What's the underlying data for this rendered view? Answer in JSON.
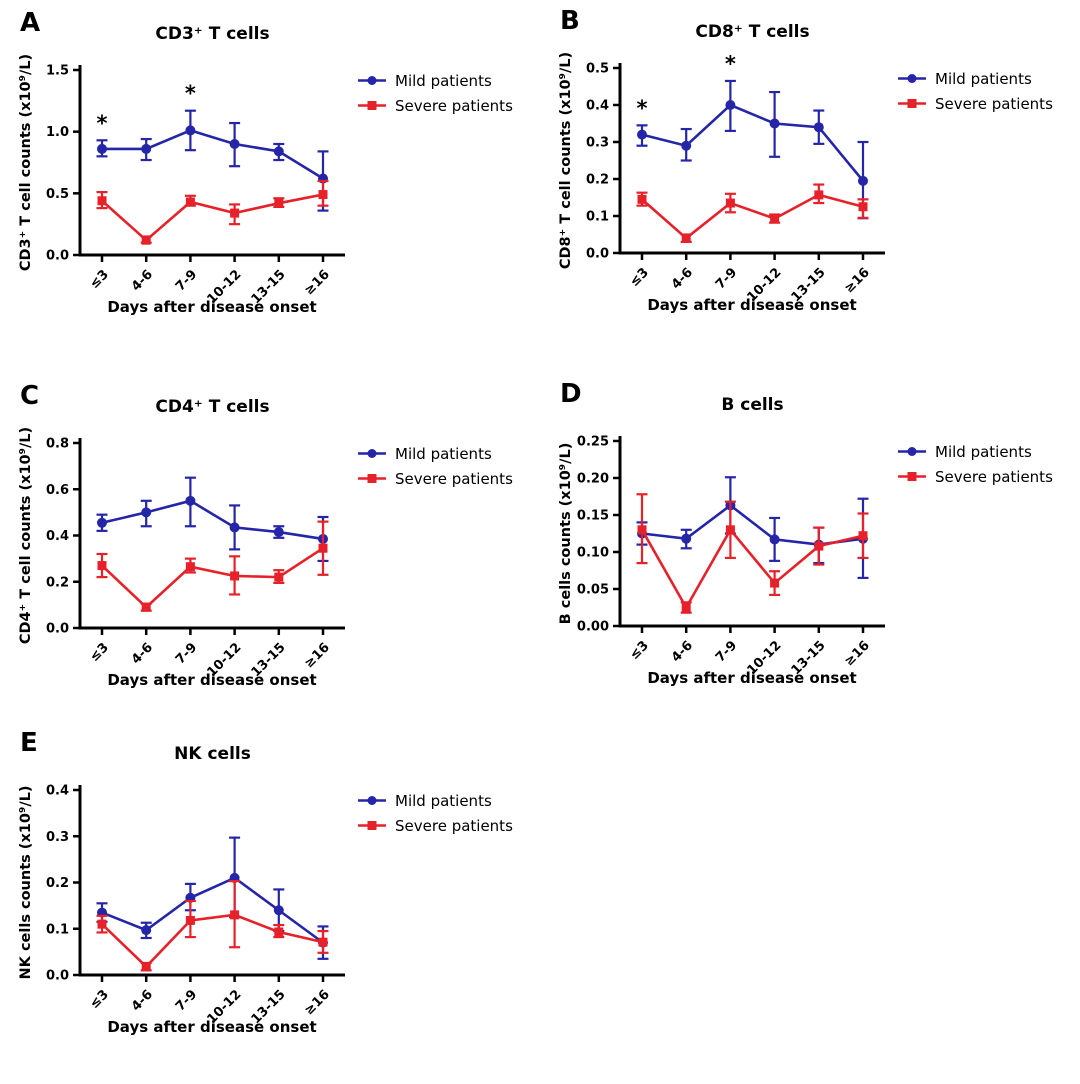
{
  "figure": {
    "background": "#ffffff",
    "axis_color": "#000000",
    "legend": [
      "Mild patients",
      "Severe patients"
    ]
  },
  "chart_data": [
    {
      "panel": "A",
      "type": "line",
      "title": "CD3⁺ T cells",
      "xlabel": "Days after disease onset",
      "ylabel": "CD3⁺ T cell counts (x10⁹/L)",
      "categories": [
        "≤3",
        "4-6",
        "7-9",
        "10-12",
        "13-15",
        "≥16"
      ],
      "ylim": [
        0,
        1.5
      ],
      "ytick_step": 0.5,
      "ytick_decimals": 1,
      "grid": false,
      "legend_position": "right",
      "significance": [
        {
          "index": 0,
          "symbol": "*"
        },
        {
          "index": 2,
          "symbol": "*"
        }
      ],
      "series": [
        {
          "name": "Mild patients",
          "color": "#2525A8",
          "marker": "circle",
          "values": [
            0.86,
            0.86,
            1.01,
            0.9,
            0.84,
            0.62
          ],
          "err_low": [
            0.8,
            0.77,
            0.85,
            0.72,
            0.77,
            0.36
          ],
          "err_high": [
            0.93,
            0.94,
            1.17,
            1.07,
            0.9,
            0.84
          ]
        },
        {
          "name": "Severe patients",
          "color": "#E6212A",
          "marker": "square",
          "values": [
            0.44,
            0.12,
            0.43,
            0.34,
            0.42,
            0.49
          ],
          "err_low": [
            0.38,
            0.1,
            0.4,
            0.25,
            0.39,
            0.4
          ],
          "err_high": [
            0.51,
            0.15,
            0.48,
            0.41,
            0.46,
            0.6
          ]
        }
      ]
    },
    {
      "panel": "B",
      "type": "line",
      "title": "CD8⁺ T cells",
      "xlabel": "Days after disease onset",
      "ylabel": "CD8⁺ T cell counts (x10⁹/L)",
      "categories": [
        "≤3",
        "4-6",
        "7-9",
        "10-12",
        "13-15",
        "≥16"
      ],
      "ylim": [
        0,
        0.5
      ],
      "ytick_step": 0.1,
      "ytick_decimals": 1,
      "grid": false,
      "legend_position": "right",
      "significance": [
        {
          "index": 0,
          "symbol": "*"
        },
        {
          "index": 2,
          "symbol": "*"
        }
      ],
      "series": [
        {
          "name": "Mild patients",
          "color": "#2525A8",
          "marker": "circle",
          "values": [
            0.32,
            0.29,
            0.4,
            0.35,
            0.34,
            0.195
          ],
          "err_low": [
            0.29,
            0.25,
            0.33,
            0.26,
            0.295,
            0.094
          ],
          "err_high": [
            0.345,
            0.335,
            0.465,
            0.435,
            0.385,
            0.3
          ]
        },
        {
          "name": "Severe patients",
          "color": "#E6212A",
          "marker": "square",
          "values": [
            0.145,
            0.04,
            0.135,
            0.093,
            0.157,
            0.125
          ],
          "err_low": [
            0.128,
            0.03,
            0.11,
            0.082,
            0.135,
            0.095
          ],
          "err_high": [
            0.163,
            0.05,
            0.16,
            0.104,
            0.185,
            0.145
          ]
        }
      ]
    },
    {
      "panel": "C",
      "type": "line",
      "title": "CD4⁺ T cells",
      "xlabel": "Days after disease onset",
      "ylabel": "CD4⁺ T cell counts (x10⁹/L)",
      "categories": [
        "≤3",
        "4-6",
        "7-9",
        "10-12",
        "13-15",
        "≥16"
      ],
      "ylim": [
        0,
        0.8
      ],
      "ytick_step": 0.2,
      "ytick_decimals": 1,
      "grid": false,
      "legend_position": "right",
      "significance": [],
      "series": [
        {
          "name": "Mild patients",
          "color": "#2525A8",
          "marker": "circle",
          "values": [
            0.455,
            0.5,
            0.55,
            0.435,
            0.415,
            0.385
          ],
          "err_low": [
            0.42,
            0.44,
            0.44,
            0.34,
            0.39,
            0.29
          ],
          "err_high": [
            0.49,
            0.55,
            0.65,
            0.53,
            0.44,
            0.48
          ]
        },
        {
          "name": "Severe patients",
          "color": "#E6212A",
          "marker": "square",
          "values": [
            0.27,
            0.09,
            0.265,
            0.225,
            0.22,
            0.345
          ],
          "err_low": [
            0.22,
            0.075,
            0.24,
            0.145,
            0.195,
            0.23
          ],
          "err_high": [
            0.32,
            0.105,
            0.3,
            0.31,
            0.25,
            0.46
          ]
        }
      ]
    },
    {
      "panel": "D",
      "type": "line",
      "title": "B cells",
      "xlabel": "Days after disease onset",
      "ylabel": "B cells counts (x10⁹/L)",
      "categories": [
        "≤3",
        "4-6",
        "7-9",
        "10-12",
        "13-15",
        "≥16"
      ],
      "ylim": [
        0,
        0.25
      ],
      "ytick_step": 0.05,
      "ytick_decimals": 2,
      "grid": false,
      "legend_position": "right",
      "significance": [],
      "series": [
        {
          "name": "Mild patients",
          "color": "#2525A8",
          "marker": "circle",
          "values": [
            0.125,
            0.118,
            0.163,
            0.117,
            0.11,
            0.118
          ],
          "err_low": [
            0.11,
            0.105,
            0.125,
            0.088,
            0.085,
            0.065
          ],
          "err_high": [
            0.14,
            0.13,
            0.201,
            0.146,
            0.133,
            0.172
          ]
        },
        {
          "name": "Severe patients",
          "color": "#E6212A",
          "marker": "square",
          "values": [
            0.13,
            0.025,
            0.13,
            0.058,
            0.108,
            0.122
          ],
          "err_low": [
            0.085,
            0.018,
            0.092,
            0.042,
            0.083,
            0.092
          ],
          "err_high": [
            0.178,
            0.032,
            0.168,
            0.074,
            0.133,
            0.152
          ]
        }
      ]
    },
    {
      "panel": "E",
      "type": "line",
      "title": "NK cells",
      "xlabel": "Days after disease onset",
      "ylabel": "NK cells counts (x10⁹/L)",
      "categories": [
        "≤3",
        "4-6",
        "7-9",
        "10-12",
        "13-15",
        "≥16"
      ],
      "ylim": [
        0,
        0.4
      ],
      "ytick_step": 0.1,
      "ytick_decimals": 1,
      "grid": false,
      "legend_position": "right",
      "significance": [],
      "series": [
        {
          "name": "Mild patients",
          "color": "#2525A8",
          "marker": "circle",
          "values": [
            0.135,
            0.097,
            0.167,
            0.21,
            0.14,
            0.07
          ],
          "err_low": [
            0.115,
            0.08,
            0.14,
            0.125,
            0.095,
            0.035
          ],
          "err_high": [
            0.155,
            0.113,
            0.197,
            0.297,
            0.185,
            0.105
          ]
        },
        {
          "name": "Severe patients",
          "color": "#E6212A",
          "marker": "square",
          "values": [
            0.11,
            0.018,
            0.118,
            0.13,
            0.093,
            0.071
          ],
          "err_low": [
            0.092,
            0.01,
            0.082,
            0.06,
            0.082,
            0.048
          ],
          "err_high": [
            0.128,
            0.026,
            0.16,
            0.203,
            0.108,
            0.095
          ]
        }
      ]
    }
  ]
}
